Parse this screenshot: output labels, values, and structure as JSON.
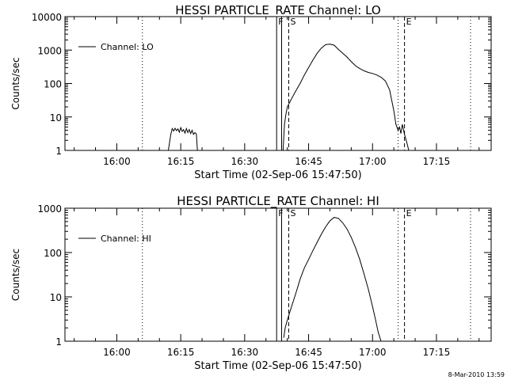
{
  "footer": {
    "stamp": "8-Mar-2010 13:59"
  },
  "chart_data": [
    {
      "type": "line",
      "title": "HESSI PARTICLE_RATE Channel: LO",
      "xlabel": "Start Time (02-Sep-06 15:47:50)",
      "ylabel": "Counts/sec",
      "yscale": "log",
      "ylim": [
        1,
        10000
      ],
      "xlim": [
        "15:47:50",
        "17:27:50"
      ],
      "yticks": [
        {
          "v": 1,
          "label": "1"
        },
        {
          "v": 10,
          "label": "10"
        },
        {
          "v": 100,
          "label": "100"
        },
        {
          "v": 1000,
          "label": "1000"
        },
        {
          "v": 10000,
          "label": "10000"
        }
      ],
      "xticks": [
        {
          "t": "16:00",
          "label": "16:00"
        },
        {
          "t": "16:15",
          "label": "16:15"
        },
        {
          "t": "16:30",
          "label": "16:30"
        },
        {
          "t": "16:45",
          "label": "16:45"
        },
        {
          "t": "17:00",
          "label": "17:00"
        },
        {
          "t": "17:15",
          "label": "17:15"
        }
      ],
      "legend": {
        "label": "Channel: LO",
        "position": "top-left"
      },
      "markers": [
        {
          "t": "16:06:00",
          "style": "dotted",
          "label": ""
        },
        {
          "t": "16:37:30",
          "style": "solid",
          "label": "F"
        },
        {
          "t": "16:38:40",
          "style": "solid",
          "label": ""
        },
        {
          "t": "16:40:20",
          "style": "dashed",
          "label": "S"
        },
        {
          "t": "17:06:00",
          "style": "dotted",
          "label": ""
        },
        {
          "t": "17:07:30",
          "style": "dashed",
          "label": "E"
        },
        {
          "t": "17:23:00",
          "style": "dotted",
          "label": ""
        }
      ],
      "series": [
        {
          "name": "Channel: LO",
          "segments": [
            [
              [
                "16:12:05",
                1
              ],
              [
                "16:12:40",
                3
              ],
              [
                "16:13:00",
                4.5
              ],
              [
                "16:13:20",
                3.8
              ],
              [
                "16:13:40",
                4.6
              ],
              [
                "16:14:00",
                3.9
              ],
              [
                "16:14:20",
                4.4
              ],
              [
                "16:14:40",
                3.5
              ],
              [
                "16:15:00",
                4.8
              ],
              [
                "16:15:20",
                3.7
              ],
              [
                "16:15:40",
                4.2
              ],
              [
                "16:16:00",
                3.3
              ],
              [
                "16:16:20",
                4.5
              ],
              [
                "16:16:40",
                3.4
              ],
              [
                "16:17:00",
                4.2
              ],
              [
                "16:17:20",
                3.2
              ],
              [
                "16:17:40",
                4.0
              ],
              [
                "16:18:00",
                3.0
              ],
              [
                "16:18:20",
                3.4
              ],
              [
                "16:18:40",
                3.1
              ],
              [
                "16:18:55",
                1
              ]
            ],
            [
              [
                "16:39:00",
                1
              ],
              [
                "16:39:20",
                6
              ],
              [
                "16:39:40",
                12
              ],
              [
                "16:40:00",
                20
              ],
              [
                "16:41:00",
                35
              ],
              [
                "16:42:00",
                60
              ],
              [
                "16:43:00",
                100
              ],
              [
                "16:44:00",
                180
              ],
              [
                "16:45:00",
                300
              ],
              [
                "16:46:00",
                500
              ],
              [
                "16:47:00",
                800
              ],
              [
                "16:48:00",
                1150
              ],
              [
                "16:49:00",
                1450
              ],
              [
                "16:50:00",
                1500
              ],
              [
                "16:51:00",
                1400
              ],
              [
                "16:52:00",
                1050
              ],
              [
                "16:53:00",
                800
              ],
              [
                "16:54:00",
                620
              ],
              [
                "16:55:00",
                450
              ],
              [
                "16:56:00",
                340
              ],
              [
                "16:57:00",
                280
              ],
              [
                "16:58:00",
                240
              ],
              [
                "16:59:00",
                215
              ],
              [
                "17:00:00",
                200
              ],
              [
                "17:01:00",
                180
              ],
              [
                "17:02:00",
                155
              ],
              [
                "17:03:00",
                120
              ],
              [
                "17:04:00",
                65
              ],
              [
                "17:05:00",
                15
              ],
              [
                "17:05:30",
                6
              ],
              [
                "17:06:00",
                4
              ],
              [
                "17:06:20",
                5
              ],
              [
                "17:06:40",
                3.2
              ],
              [
                "17:07:00",
                6
              ],
              [
                "17:07:30",
                3
              ],
              [
                "17:08:00",
                1.8
              ],
              [
                "17:08:30",
                1
              ]
            ]
          ]
        }
      ]
    },
    {
      "type": "line",
      "title": "HESSI PARTICLE_RATE Channel: HI",
      "xlabel": "Start Time (02-Sep-06 15:47:50)",
      "ylabel": "Counts/sec",
      "yscale": "log",
      "ylim": [
        1,
        1000
      ],
      "xlim": [
        "15:47:50",
        "17:27:50"
      ],
      "yticks": [
        {
          "v": 1,
          "label": "1"
        },
        {
          "v": 10,
          "label": "10"
        },
        {
          "v": 100,
          "label": "100"
        },
        {
          "v": 1000,
          "label": "1000"
        }
      ],
      "xticks": [
        {
          "t": "16:00",
          "label": "16:00"
        },
        {
          "t": "16:15",
          "label": "16:15"
        },
        {
          "t": "16:30",
          "label": "16:30"
        },
        {
          "t": "16:45",
          "label": "16:45"
        },
        {
          "t": "17:00",
          "label": "17:00"
        },
        {
          "t": "17:15",
          "label": "17:15"
        }
      ],
      "legend": {
        "label": "Channel: HI",
        "position": "top-left"
      },
      "markers": [
        {
          "t": "16:06:00",
          "style": "dotted",
          "label": ""
        },
        {
          "t": "16:37:30",
          "style": "solid",
          "label": "F"
        },
        {
          "t": "16:38:40",
          "style": "solid",
          "label": ""
        },
        {
          "t": "16:40:20",
          "style": "dashed",
          "label": "S"
        },
        {
          "t": "17:06:00",
          "style": "dotted",
          "label": ""
        },
        {
          "t": "17:07:30",
          "style": "dashed",
          "label": "E"
        },
        {
          "t": "17:23:00",
          "style": "dotted",
          "label": ""
        }
      ],
      "series": [
        {
          "name": "Channel: HI",
          "segments": [
            [
              [
                "16:39:10",
                1.2
              ],
              [
                "16:39:30",
                2
              ],
              [
                "16:40:00",
                3
              ],
              [
                "16:41:00",
                6
              ],
              [
                "16:42:00",
                12
              ],
              [
                "16:43:00",
                25
              ],
              [
                "16:44:00",
                45
              ],
              [
                "16:45:00",
                70
              ],
              [
                "16:46:00",
                110
              ],
              [
                "16:47:00",
                170
              ],
              [
                "16:48:00",
                260
              ],
              [
                "16:49:00",
                380
              ],
              [
                "16:50:00",
                520
              ],
              [
                "16:51:00",
                620
              ],
              [
                "16:52:00",
                590
              ],
              [
                "16:53:00",
                470
              ],
              [
                "16:54:00",
                340
              ],
              [
                "16:55:00",
                220
              ],
              [
                "16:56:00",
                130
              ],
              [
                "16:57:00",
                70
              ],
              [
                "16:58:00",
                33
              ],
              [
                "16:59:00",
                15
              ],
              [
                "17:00:00",
                6
              ],
              [
                "17:00:40",
                3.2
              ],
              [
                "17:01:20",
                1.6
              ],
              [
                "17:02:00",
                1
              ]
            ]
          ]
        }
      ]
    }
  ]
}
